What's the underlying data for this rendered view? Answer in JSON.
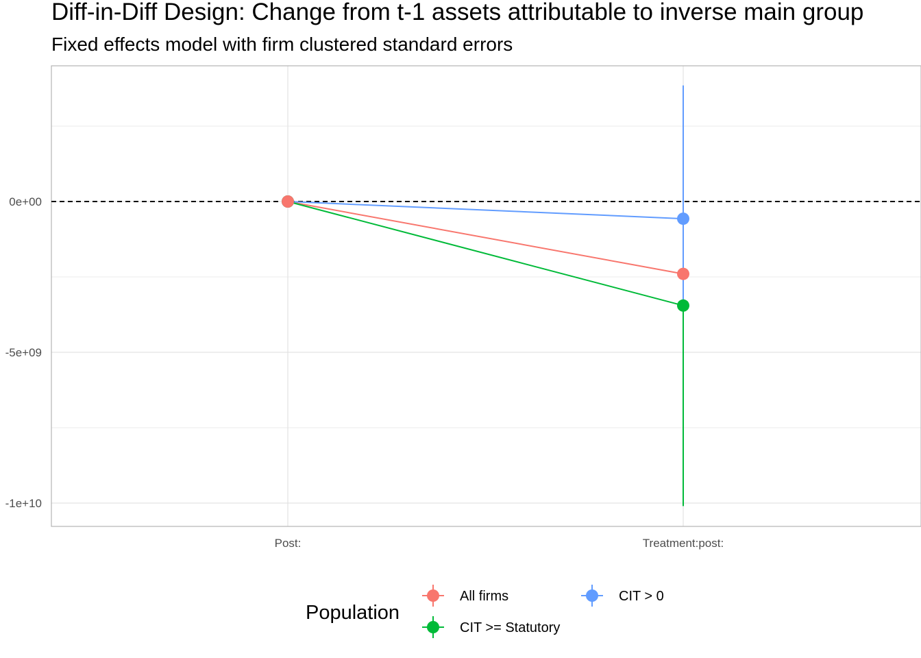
{
  "chart_data": {
    "type": "scatter",
    "title": "Diff-in-Diff Design: Change from t-1 assets attributable to inverse main group",
    "subtitle": "Fixed effects model with firm clustered standard errors",
    "xlabel": "",
    "ylabel": "",
    "categories": [
      "Post:",
      "Treatment:post:"
    ],
    "ylim": [
      -10800000000,
      4500000000
    ],
    "yticks": [
      {
        "value": -10000000000,
        "label": "-1e+10"
      },
      {
        "value": -5000000000,
        "label": "-5e+09"
      },
      {
        "value": 0,
        "label": "0e+00"
      }
    ],
    "y_minor_grid": [
      -7500000000,
      -2500000000,
      2500000000
    ],
    "reference_line": {
      "value": 0,
      "style": "dashed"
    },
    "grid": true,
    "legend_title": "Population",
    "legend_position": "bottom",
    "series": [
      {
        "name": "All firms",
        "color": "#F8766D",
        "values": [
          0,
          -2400000000
        ],
        "ci_low": [
          0,
          -2400000000
        ],
        "ci_high": [
          0,
          -2400000000
        ]
      },
      {
        "name": "CIT >= Statutory",
        "color": "#00BA38",
        "values": [
          0,
          -3450000000
        ],
        "ci_low": [
          0,
          -10100000000
        ],
        "ci_high": [
          0,
          -3450000000
        ]
      },
      {
        "name": "CIT > 0",
        "color": "#619CFF",
        "values": [
          0,
          -570000000
        ],
        "ci_low": [
          0,
          -5000000000
        ],
        "ci_high": [
          0,
          3850000000
        ]
      }
    ]
  }
}
